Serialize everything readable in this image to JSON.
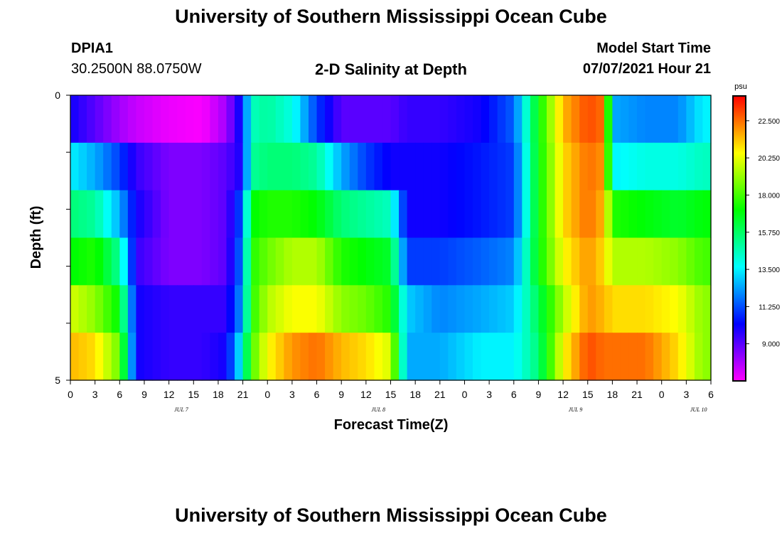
{
  "header": {
    "title": "University of Southern Mississippi Ocean Cube",
    "station_id": "DPIA1",
    "station_coords": "30.2500N  88.0750W",
    "model_start_label": "Model Start Time",
    "model_start_value": "07/07/2021 Hour 21"
  },
  "footer": {
    "title": "University of Southern Mississippi Ocean Cube"
  },
  "chart_data": {
    "type": "heatmap",
    "title": "2-D Salinity at Depth",
    "xlabel": "Forecast Time(Z)",
    "ylabel": "Depth (ft)",
    "x_tick_labels": [
      "0",
      "3",
      "6",
      "9",
      "12",
      "15",
      "18",
      "21",
      "0",
      "3",
      "6",
      "9",
      "12",
      "15",
      "18",
      "21",
      "0",
      "3",
      "6",
      "9",
      "12",
      "15",
      "18",
      "21",
      "0",
      "3",
      "6"
    ],
    "day_labels": [
      {
        "label": "JUL 7",
        "tick_index": 4.5
      },
      {
        "label": "JUL 8",
        "tick_index": 12.5
      },
      {
        "label": "JUL 9",
        "tick_index": 20.5
      },
      {
        "label": "JUL 10",
        "tick_index": 25.5
      }
    ],
    "y_tick_labels": [
      "0",
      "5"
    ],
    "ylim": [
      0,
      5
    ],
    "y_minor_ticks": 4,
    "hours_total": 78,
    "depth_rows": 5,
    "depth_layers_drawn": 6,
    "colorbar": {
      "unit": "psu",
      "range": [
        6.75,
        24
      ],
      "tick_labels": [
        "22.500",
        "20.250",
        "18.000",
        "15.750",
        "13.500",
        "11.250",
        "9.000"
      ],
      "tick_values": [
        22.5,
        20.25,
        18.0,
        15.75,
        13.5,
        11.25,
        9.0
      ]
    },
    "colors": [
      "#ff00ff",
      "#0000ff",
      "#00ffff",
      "#00ff00",
      "#ffff00",
      "#ff0000"
    ],
    "salinity_keyframes": [
      {
        "hour": 0,
        "values": [
          10.0,
          13.5,
          15.5,
          17.0,
          20.0,
          21.5
        ]
      },
      {
        "hour": 3,
        "values": [
          9.0,
          12.5,
          15.0,
          17.5,
          19.0,
          21.0
        ]
      },
      {
        "hour": 6,
        "values": [
          8.0,
          11.0,
          12.5,
          15.0,
          17.0,
          18.5
        ]
      },
      {
        "hour": 8,
        "values": [
          7.5,
          9.5,
          10.0,
          9.5,
          10.0,
          10.0
        ]
      },
      {
        "hour": 12,
        "values": [
          7.0,
          8.5,
          8.5,
          8.5,
          9.5,
          9.5
        ]
      },
      {
        "hour": 16,
        "values": [
          6.8,
          8.5,
          8.5,
          8.5,
          9.5,
          9.5
        ]
      },
      {
        "hour": 19,
        "values": [
          8.0,
          9.0,
          9.0,
          9.0,
          9.5,
          10.0
        ]
      },
      {
        "hour": 21,
        "values": [
          10.5,
          10.0,
          11.5,
          12.0,
          12.5,
          14.0
        ]
      },
      {
        "hour": 22,
        "values": [
          14.5,
          15.0,
          17.0,
          17.5,
          17.5,
          18.0
        ]
      },
      {
        "hour": 24,
        "values": [
          15.0,
          15.5,
          17.5,
          18.5,
          19.5,
          20.5
        ]
      },
      {
        "hour": 27,
        "values": [
          14.0,
          15.5,
          17.5,
          19.5,
          20.5,
          22.0
        ]
      },
      {
        "hour": 30,
        "values": [
          11.0,
          15.0,
          17.0,
          19.5,
          20.5,
          22.5
        ]
      },
      {
        "hour": 33,
        "values": [
          9.0,
          12.5,
          15.5,
          17.5,
          19.0,
          21.5
        ]
      },
      {
        "hour": 36,
        "values": [
          9.0,
          11.0,
          15.0,
          17.0,
          18.5,
          21.0
        ]
      },
      {
        "hour": 39,
        "values": [
          9.0,
          10.0,
          14.5,
          16.5,
          17.5,
          20.0
        ]
      },
      {
        "hour": 41,
        "values": [
          9.5,
          10.0,
          10.0,
          11.0,
          13.0,
          12.5
        ]
      },
      {
        "hour": 45,
        "values": [
          9.5,
          10.0,
          10.0,
          11.0,
          12.0,
          12.5
        ]
      },
      {
        "hour": 50,
        "values": [
          10.0,
          10.5,
          10.5,
          11.5,
          12.5,
          13.5
        ]
      },
      {
        "hour": 54,
        "values": [
          11.5,
          11.0,
          11.0,
          12.0,
          13.0,
          13.5
        ]
      },
      {
        "hour": 57,
        "values": [
          17.0,
          17.0,
          17.0,
          17.0,
          16.0,
          15.5
        ]
      },
      {
        "hour": 60,
        "values": [
          21.5,
          21.0,
          21.0,
          20.5,
          19.5,
          20.5
        ]
      },
      {
        "hour": 63,
        "values": [
          23.0,
          22.5,
          22.5,
          22.0,
          22.0,
          23.0
        ]
      },
      {
        "hour": 65,
        "values": [
          22.5,
          22.0,
          21.5,
          21.0,
          21.5,
          22.5
        ]
      },
      {
        "hour": 66,
        "values": [
          12.5,
          13.5,
          17.5,
          19.5,
          21.0,
          22.5
        ]
      },
      {
        "hour": 70,
        "values": [
          12.0,
          14.0,
          17.0,
          19.5,
          21.0,
          22.5
        ]
      },
      {
        "hour": 74,
        "values": [
          12.0,
          14.0,
          16.5,
          19.0,
          20.5,
          21.0
        ]
      },
      {
        "hour": 77,
        "values": [
          13.5,
          14.5,
          17.0,
          18.0,
          19.0,
          19.0
        ]
      },
      {
        "hour": 78,
        "values": [
          13.5,
          14.5,
          17.0,
          18.0,
          19.0,
          19.0
        ]
      }
    ]
  }
}
